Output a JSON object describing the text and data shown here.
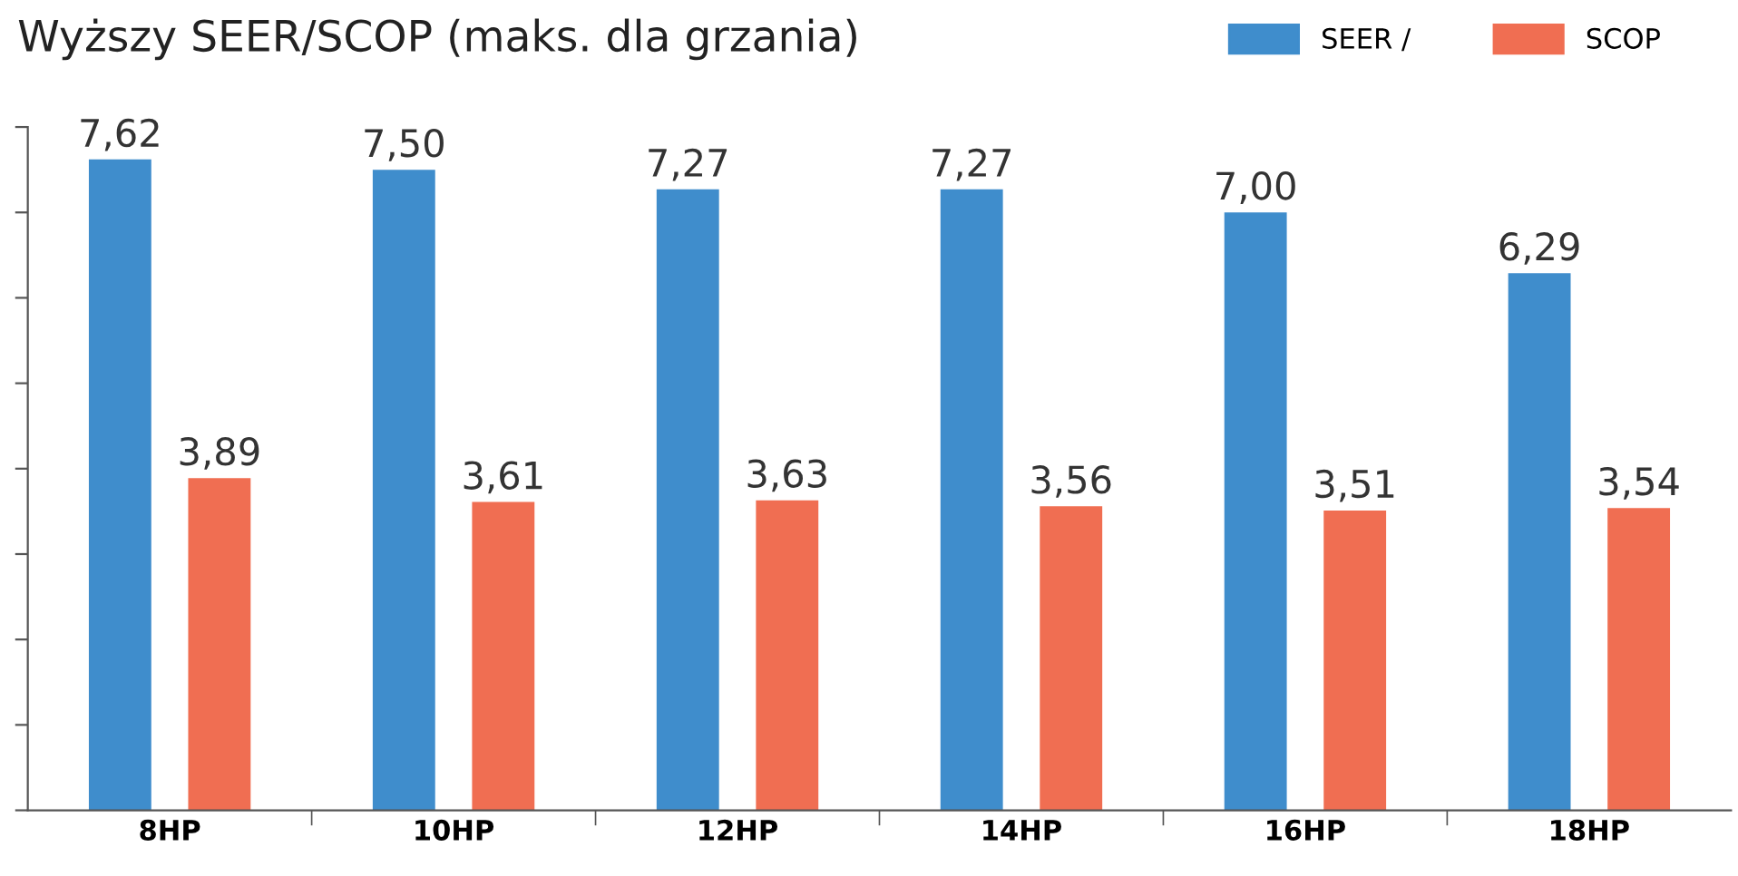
{
  "chart_data": {
    "type": "bar",
    "title": "Wyższy SEER/SCOP (maks. dla grzania)",
    "categories": [
      "8HP",
      "10HP",
      "12HP",
      "14HP",
      "16HP",
      "18HP"
    ],
    "series": [
      {
        "name": "SEER /",
        "color": "#3f8dcc",
        "values": [
          7.62,
          7.5,
          7.27,
          7.27,
          7.0,
          6.29
        ],
        "value_labels": [
          "7,62",
          "7,50",
          "7,27",
          "7,27",
          "7,00",
          "6,29"
        ]
      },
      {
        "name": "SCOP",
        "color": "#f06e52",
        "values": [
          3.89,
          3.61,
          3.63,
          3.56,
          3.51,
          3.54
        ],
        "value_labels": [
          "3,89",
          "3,61",
          "3,63",
          "3,56",
          "3,51",
          "3,54"
        ]
      }
    ],
    "ylim": [
      0,
      8
    ],
    "yticks": [
      {
        "value": 0,
        "label": null
      },
      {
        "value": 1,
        "label": null
      },
      {
        "value": 2,
        "label": null
      },
      {
        "value": 3,
        "label": null
      },
      {
        "value": 4,
        "label": null
      },
      {
        "value": 5,
        "label": null
      },
      {
        "value": 6,
        "label": null
      },
      {
        "value": 7,
        "label": null
      },
      {
        "value": 8,
        "label": null
      }
    ],
    "grid": false,
    "legend": "top right"
  }
}
